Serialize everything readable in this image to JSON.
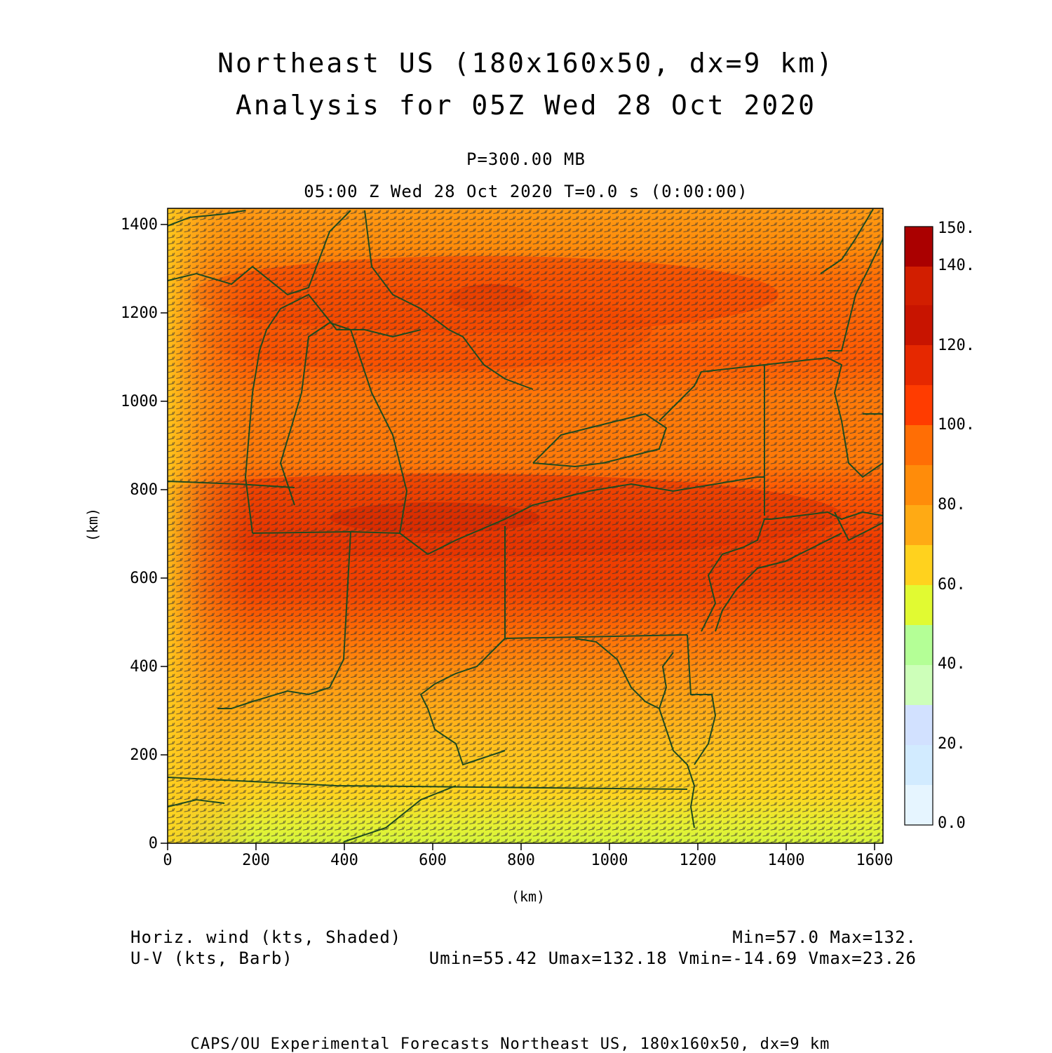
{
  "header": {
    "title_line1": "Northeast US (180x160x50, dx=9 km)",
    "title_line2": "Analysis for 05Z Wed 28 Oct 2020",
    "pressure": "P=300.00 MB",
    "valid_time": "05:00 Z Wed 28 Oct 2020   T=0.0 s (0:00:00)"
  },
  "axes": {
    "x_unit": "(km)",
    "y_unit": "(km)",
    "x_ticks": [
      "0",
      "200",
      "400",
      "600",
      "800",
      "1000",
      "1200",
      "1400",
      "1600"
    ],
    "y_ticks": [
      "0",
      "200",
      "400",
      "600",
      "800",
      "1000",
      "1200",
      "1400"
    ],
    "x_range": [
      0,
      1620
    ],
    "y_range": [
      0,
      1440
    ]
  },
  "colorbar": {
    "labels": [
      "0.0",
      "20.",
      "40.",
      "60.",
      "80.",
      "100.",
      "120.",
      "140.",
      "150."
    ],
    "colors": [
      "#e6f5ff",
      "#d2ebff",
      "#d2e1ff",
      "#cdffb9",
      "#b4ff96",
      "#e1fa32",
      "#ffd21e",
      "#ffaa14",
      "#ff8c0a",
      "#ff6e05",
      "#ff3c00",
      "#e62800",
      "#c81400",
      "#aa0000"
    ]
  },
  "legend": {
    "left_line1": "Horiz. wind (kts, Shaded)",
    "left_line2": "U-V (kts, Barb)",
    "right_line1": "Min=57.0 Max=132.",
    "right_line2": "Umin=55.42 Umax=132.18 Vmin=-14.69 Vmax=23.26"
  },
  "footer": {
    "credit": "CAPS/OU Experimental Forecasts  Northeast US, 180x160x50, dx=9 km"
  },
  "colors": {
    "boundary": "#1f4a1f",
    "barb": "#333333",
    "axis": "#000000"
  }
}
